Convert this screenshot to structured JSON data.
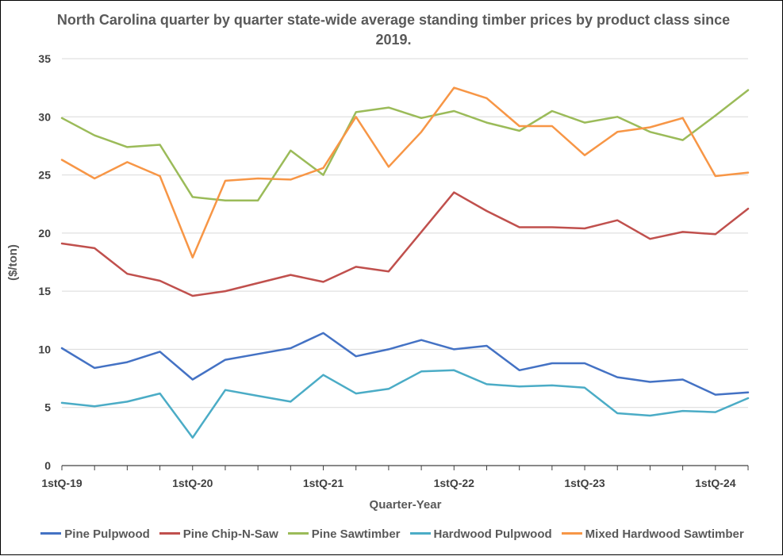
{
  "chart_data": {
    "type": "line",
    "title": "North Carolina quarter by quarter state-wide average standing timber prices by product class  since 2019.",
    "xlabel": "Quarter-Year",
    "ylabel": "($/ton)",
    "ylim": [
      0,
      35
    ],
    "yticks": [
      0,
      5,
      10,
      15,
      20,
      25,
      30,
      35
    ],
    "grid": "horizontal",
    "legend_position": "bottom",
    "x_tick_labels": [
      "1stQ-19",
      "1stQ-20",
      "1stQ-21",
      "1stQ-22",
      "1stQ-23",
      "1stQ-24"
    ],
    "x": [
      "1stQ-19",
      "2ndQ-19",
      "3rdQ-19",
      "4thQ-19",
      "1stQ-20",
      "2ndQ-20",
      "3rdQ-20",
      "4thQ-20",
      "1stQ-21",
      "2ndQ-21",
      "3rdQ-21",
      "4thQ-21",
      "1stQ-22",
      "2ndQ-22",
      "3rdQ-22",
      "4thQ-22",
      "1stQ-23",
      "2ndQ-23",
      "3rdQ-23",
      "4thQ-23",
      "1stQ-24",
      "2ndQ-24"
    ],
    "series": [
      {
        "name": "Pine Pulpwood",
        "color": "#4472C4",
        "values": [
          10.1,
          8.4,
          8.9,
          9.8,
          7.4,
          9.1,
          9.6,
          10.1,
          11.4,
          9.4,
          10.0,
          10.8,
          10.0,
          10.3,
          8.2,
          8.8,
          8.8,
          7.6,
          7.2,
          7.4,
          6.1,
          6.3
        ]
      },
      {
        "name": "Pine Chip-N-Saw",
        "color": "#C0504D",
        "values": [
          19.1,
          18.7,
          16.5,
          15.9,
          14.6,
          15.0,
          15.7,
          16.4,
          15.8,
          17.1,
          16.7,
          20.1,
          23.5,
          21.9,
          20.5,
          20.5,
          20.4,
          21.1,
          19.5,
          20.1,
          19.9,
          22.1
        ]
      },
      {
        "name": "Pine Sawtimber",
        "color": "#9BBB59",
        "values": [
          29.9,
          28.4,
          27.4,
          27.6,
          23.1,
          22.8,
          22.8,
          27.1,
          25.0,
          30.4,
          30.8,
          29.9,
          30.5,
          29.5,
          28.8,
          30.5,
          29.5,
          30.0,
          28.7,
          28.0,
          30.1,
          32.3
        ]
      },
      {
        "name": "Hardwood Pulpwood",
        "color": "#4BACC6",
        "values": [
          5.4,
          5.1,
          5.5,
          6.2,
          2.4,
          6.5,
          6.0,
          5.5,
          7.8,
          6.2,
          6.6,
          8.1,
          8.2,
          7.0,
          6.8,
          6.9,
          6.7,
          4.5,
          4.3,
          4.7,
          4.6,
          5.8
        ]
      },
      {
        "name": "Mixed Hardwood Sawtimber",
        "color": "#F79646",
        "values": [
          26.3,
          24.7,
          26.1,
          24.9,
          17.9,
          24.5,
          24.7,
          24.6,
          25.6,
          30.0,
          25.7,
          28.7,
          32.5,
          31.6,
          29.2,
          29.2,
          26.7,
          28.7,
          29.1,
          29.9,
          24.9,
          25.2
        ]
      }
    ]
  }
}
